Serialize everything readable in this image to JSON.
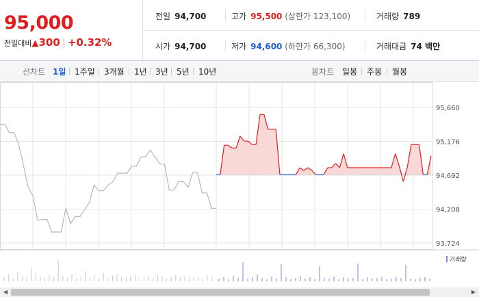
{
  "quote": {
    "price": "95,000",
    "change_label": "전일대비",
    "change_arrow": "▲",
    "change_value": "300",
    "change_pct": "+0.32%"
  },
  "stats": {
    "prev_close": {
      "label": "전일",
      "value": "94,700"
    },
    "high": {
      "label": "고가",
      "value": "95,500",
      "sub": "(상한가 123,100)"
    },
    "volume": {
      "label": "거래량",
      "value": "789"
    },
    "open": {
      "label": "시가",
      "value": "94,700"
    },
    "low": {
      "label": "저가",
      "value": "94,600",
      "sub": "(하한가 66,300)"
    },
    "amount": {
      "label": "거래대금",
      "value": "74 백만"
    }
  },
  "line_tabs": {
    "title": "선차트",
    "items": [
      "1일",
      "1주일",
      "3개월",
      "1년",
      "3년",
      "5년",
      "10년"
    ],
    "active": "1일"
  },
  "candle_tabs": {
    "title": "봉차트",
    "items": [
      "일봉",
      "주봉",
      "월봉"
    ]
  },
  "chart_data": {
    "type": "line",
    "y_ticks": [
      "95,660",
      "95,176",
      "94,692",
      "94,208",
      "93,724"
    ],
    "ylim": [
      93724,
      95660
    ],
    "baseline": 94700,
    "volume_legend": "거래량",
    "colors": {
      "up": "#e01e1e",
      "up_fill": "#f9d8d8",
      "down": "#1e5fd6",
      "prev_day": "#b8b8b8",
      "grid": "#e6e6e6",
      "volume": "#8a7fd8"
    },
    "prev_day_series": [
      95420,
      95420,
      95300,
      95300,
      95130,
      94830,
      94520,
      94400,
      94050,
      94060,
      94060,
      93880,
      93880,
      93880,
      94220,
      94000,
      94100,
      94100,
      94200,
      94300,
      94550,
      94470,
      94470,
      94550,
      94600,
      94720,
      94720,
      94720,
      94820,
      94820,
      94950,
      94960,
      95050,
      94950,
      94850,
      94850,
      94480,
      94480,
      94600,
      94600,
      94520,
      94730,
      94730,
      94440,
      94440,
      94220,
      94220
    ],
    "today_series": [
      94700,
      94700,
      95120,
      95120,
      95080,
      95080,
      95250,
      95180,
      95180,
      95130,
      95130,
      95560,
      95560,
      95350,
      95350,
      95350,
      94700,
      94700,
      94700,
      94700,
      94700,
      94800,
      94760,
      94800,
      94760,
      94700,
      94700,
      94700,
      94800,
      94800,
      94860,
      94800,
      95000,
      94800,
      94800,
      94800,
      94800,
      94800,
      94800,
      94800,
      94800,
      94800,
      94800,
      94800,
      94800,
      95000,
      94820,
      94600,
      94800,
      95130,
      95130,
      95130,
      94700,
      94700,
      94970
    ]
  }
}
